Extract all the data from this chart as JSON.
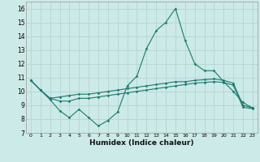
{
  "xlabel": "Humidex (Indice chaleur)",
  "background_color": "#cceae7",
  "grid_color": "#b8d8d5",
  "line_color": "#1a7a6e",
  "x_values": [
    0,
    1,
    2,
    3,
    4,
    5,
    6,
    7,
    8,
    9,
    10,
    11,
    12,
    13,
    14,
    15,
    16,
    17,
    18,
    19,
    20,
    21,
    22,
    23
  ],
  "series1": [
    10.8,
    10.1,
    9.4,
    8.6,
    8.1,
    8.7,
    8.1,
    7.5,
    7.9,
    8.5,
    10.4,
    11.1,
    13.1,
    14.4,
    15.0,
    16.0,
    13.7,
    12.0,
    11.5,
    11.5,
    10.7,
    10.0,
    9.2,
    8.8
  ],
  "series2": [
    10.8,
    10.1,
    9.5,
    9.6,
    9.7,
    9.8,
    9.8,
    9.9,
    10.0,
    10.1,
    10.2,
    10.3,
    10.4,
    10.5,
    10.6,
    10.7,
    10.7,
    10.8,
    10.85,
    10.9,
    10.8,
    10.6,
    9.0,
    8.8
  ],
  "series3": [
    10.8,
    10.1,
    9.5,
    9.3,
    9.3,
    9.5,
    9.5,
    9.6,
    9.7,
    9.8,
    9.9,
    10.0,
    10.1,
    10.2,
    10.3,
    10.4,
    10.5,
    10.6,
    10.65,
    10.7,
    10.65,
    10.45,
    8.85,
    8.75
  ],
  "ylim": [
    7,
    16.5
  ],
  "yticks": [
    7,
    8,
    9,
    10,
    11,
    12,
    13,
    14,
    15,
    16
  ],
  "xticks": [
    0,
    1,
    2,
    3,
    4,
    5,
    6,
    7,
    8,
    9,
    10,
    11,
    12,
    13,
    14,
    15,
    16,
    17,
    18,
    19,
    20,
    21,
    22,
    23
  ]
}
